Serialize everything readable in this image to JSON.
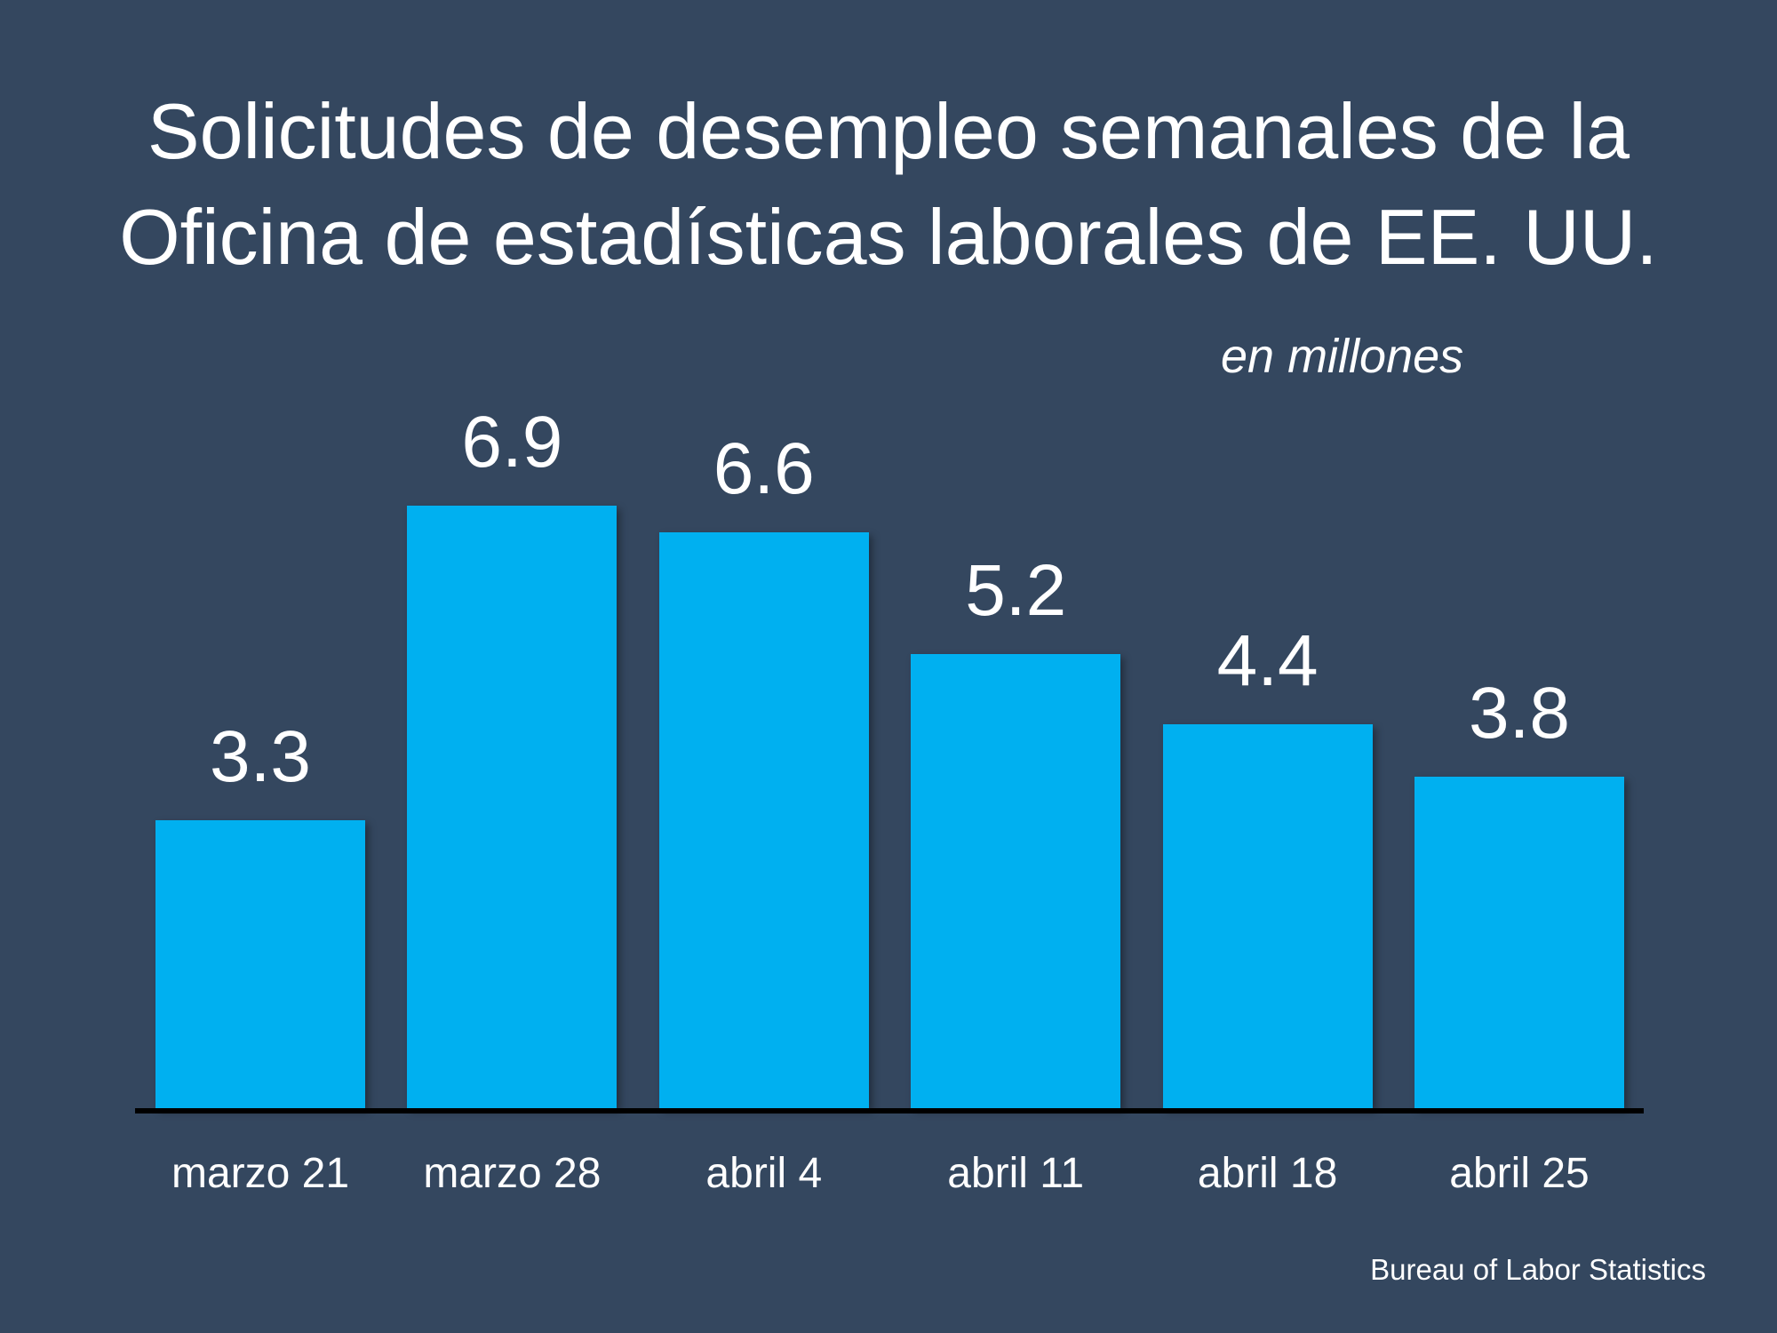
{
  "chart_data": {
    "type": "bar",
    "title": "Solicitudes de desempleo semanales de la Oficina de estadísticas laborales de EE. UU.",
    "title_lines": [
      "Solicitudes de desempleo semanales de la",
      "Oficina de estadísticas laborales de EE. UU."
    ],
    "unit_label": "en millones",
    "categories": [
      "marzo 21",
      "marzo 28",
      "abril 4",
      "abril 11",
      "abril 18",
      "abril 25"
    ],
    "values": [
      3.3,
      6.9,
      6.6,
      5.2,
      4.4,
      3.8
    ],
    "value_labels": [
      "3.3",
      "6.9",
      "6.6",
      "5.2",
      "4.4",
      "3.8"
    ],
    "ylim": [
      0,
      7.5
    ],
    "grid": false,
    "legend": "none",
    "source": "Bureau of Labor Statistics",
    "colors": {
      "background": "#34475f",
      "bar": "#00b0f0",
      "axis": "#000000",
      "text": "#ffffff"
    }
  }
}
